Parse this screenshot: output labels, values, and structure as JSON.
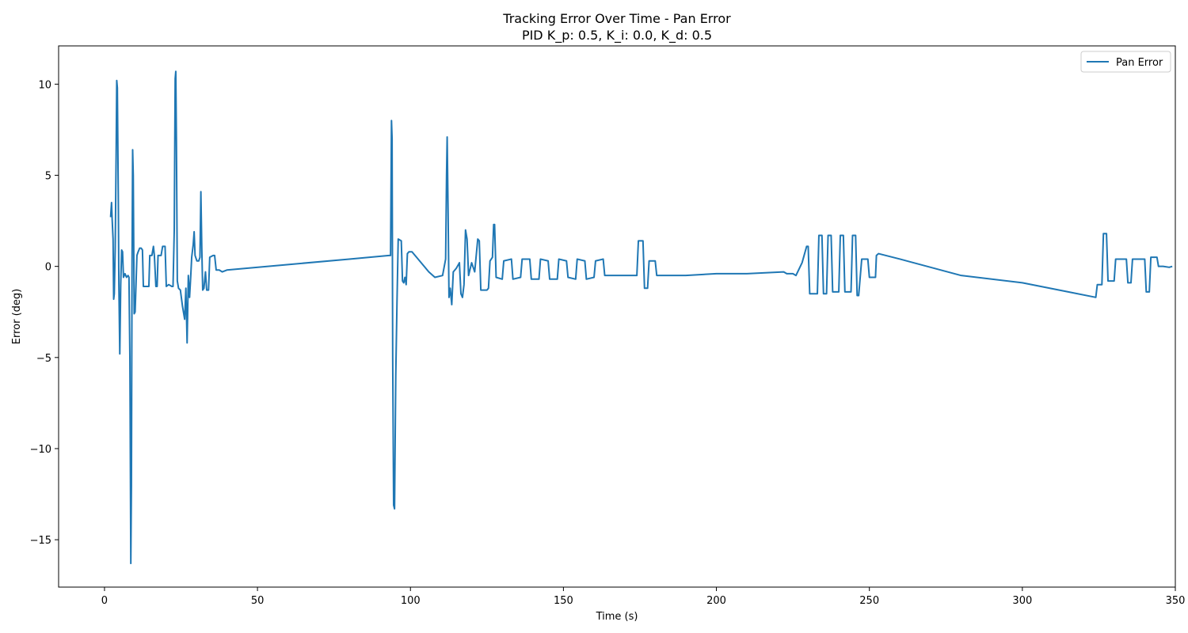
{
  "chart_data": {
    "type": "line",
    "title": "Tracking Error Over Time - Pan Error",
    "subtitle": "PID K_p: 0.5, K_i: 0.0, K_d: 0.5",
    "xlabel": "Time (s)",
    "ylabel": "Error (deg)",
    "xlim": [
      -15,
      350
    ],
    "ylim": [
      -17.6,
      12.1
    ],
    "x_ticks": [
      0,
      50,
      100,
      150,
      200,
      250,
      300,
      350
    ],
    "x_tick_labels": [
      "0",
      "50",
      "100",
      "150",
      "200",
      "250",
      "300",
      "350"
    ],
    "y_ticks": [
      -15,
      -10,
      -5,
      0,
      5,
      10
    ],
    "y_tick_labels": [
      "−15",
      "−10",
      "−5",
      "0",
      "5",
      "10"
    ],
    "grid": false,
    "legend": {
      "position": "top-right",
      "entries": [
        "Pan Error"
      ]
    },
    "colors": {
      "series": "#1f77b4",
      "axes": "#000000"
    },
    "series": [
      {
        "name": "Pan Error",
        "points": [
          [
            2.0,
            2.7
          ],
          [
            2.3,
            3.5
          ],
          [
            2.5,
            2.6
          ],
          [
            2.8,
            1.5
          ],
          [
            3.0,
            -1.8
          ],
          [
            3.2,
            -1.5
          ],
          [
            3.5,
            1.0
          ],
          [
            3.8,
            6.0
          ],
          [
            4.0,
            10.2
          ],
          [
            4.2,
            9.8
          ],
          [
            4.5,
            4.0
          ],
          [
            4.7,
            -1.0
          ],
          [
            5.0,
            -4.8
          ],
          [
            5.3,
            -1.0
          ],
          [
            5.6,
            0.9
          ],
          [
            5.9,
            0.8
          ],
          [
            6.2,
            -0.6
          ],
          [
            6.7,
            -0.4
          ],
          [
            7.2,
            -0.6
          ],
          [
            7.7,
            -0.5
          ],
          [
            8.0,
            -0.6
          ],
          [
            8.3,
            -5.0
          ],
          [
            8.6,
            -16.3
          ],
          [
            8.8,
            -12.0
          ],
          [
            9.0,
            0.0
          ],
          [
            9.2,
            6.4
          ],
          [
            9.4,
            5.0
          ],
          [
            9.7,
            -2.6
          ],
          [
            10.0,
            -2.5
          ],
          [
            10.3,
            -1.0
          ],
          [
            10.6,
            0.6
          ],
          [
            11.0,
            0.8
          ],
          [
            11.5,
            1.0
          ],
          [
            12.0,
            1.0
          ],
          [
            12.4,
            0.9
          ],
          [
            12.7,
            -1.1
          ],
          [
            13.5,
            -1.1
          ],
          [
            14.5,
            -1.1
          ],
          [
            14.8,
            0.6
          ],
          [
            15.5,
            0.6
          ],
          [
            16.0,
            1.1
          ],
          [
            16.3,
            0.6
          ],
          [
            16.8,
            -1.1
          ],
          [
            17.2,
            -1.1
          ],
          [
            17.5,
            0.6
          ],
          [
            18.5,
            0.6
          ],
          [
            19.0,
            1.1
          ],
          [
            19.8,
            1.1
          ],
          [
            20.2,
            -1.1
          ],
          [
            21.0,
            -1.0
          ],
          [
            22.0,
            -1.1
          ],
          [
            22.4,
            -1.1
          ],
          [
            22.8,
            2.0
          ],
          [
            23.1,
            10.3
          ],
          [
            23.3,
            10.7
          ],
          [
            23.5,
            7.0
          ],
          [
            23.8,
            -0.8
          ],
          [
            24.2,
            -1.2
          ],
          [
            24.8,
            -1.3
          ],
          [
            25.5,
            -2.2
          ],
          [
            26.2,
            -2.9
          ],
          [
            26.6,
            -1.2
          ],
          [
            27.0,
            -4.2
          ],
          [
            27.4,
            -0.5
          ],
          [
            27.8,
            -1.7
          ],
          [
            28.2,
            -0.5
          ],
          [
            28.5,
            0.5
          ],
          [
            29.0,
            1.2
          ],
          [
            29.3,
            1.9
          ],
          [
            29.6,
            0.6
          ],
          [
            30.2,
            0.3
          ],
          [
            30.8,
            0.3
          ],
          [
            31.2,
            0.5
          ],
          [
            31.5,
            4.1
          ],
          [
            31.8,
            1.0
          ],
          [
            32.1,
            -1.3
          ],
          [
            32.5,
            -1.2
          ],
          [
            33.0,
            -0.3
          ],
          [
            33.4,
            -1.3
          ],
          [
            34.0,
            -1.3
          ],
          [
            34.4,
            0.5
          ],
          [
            35.5,
            0.6
          ],
          [
            36.0,
            0.6
          ],
          [
            36.5,
            -0.2
          ],
          [
            37.5,
            -0.2
          ],
          [
            38.5,
            -0.3
          ],
          [
            40.0,
            -0.2
          ],
          [
            60.0,
            0.1
          ],
          [
            80.0,
            0.4
          ],
          [
            93.0,
            0.6
          ],
          [
            93.5,
            0.6
          ],
          [
            93.8,
            8.0
          ],
          [
            94.0,
            7.0
          ],
          [
            94.2,
            -5.0
          ],
          [
            94.5,
            -13.1
          ],
          [
            94.8,
            -13.3
          ],
          [
            95.2,
            -6.0
          ],
          [
            95.6,
            -2.0
          ],
          [
            96.0,
            1.5
          ],
          [
            97.0,
            1.4
          ],
          [
            97.4,
            -0.8
          ],
          [
            97.8,
            -0.9
          ],
          [
            98.2,
            -0.6
          ],
          [
            98.6,
            -1.0
          ],
          [
            99.0,
            0.7
          ],
          [
            99.5,
            0.8
          ],
          [
            100.5,
            0.8
          ],
          [
            102.0,
            0.5
          ],
          [
            104.0,
            0.1
          ],
          [
            106.0,
            -0.3
          ],
          [
            108.0,
            -0.6
          ],
          [
            110.5,
            -0.5
          ],
          [
            111.5,
            0.4
          ],
          [
            111.8,
            5.0
          ],
          [
            112.0,
            7.1
          ],
          [
            112.3,
            3.0
          ],
          [
            112.6,
            -1.7
          ],
          [
            113.0,
            -1.2
          ],
          [
            113.5,
            -2.1
          ],
          [
            114.0,
            -0.3
          ],
          [
            115.0,
            -0.1
          ],
          [
            116.0,
            0.2
          ],
          [
            116.5,
            -1.5
          ],
          [
            117.0,
            -1.7
          ],
          [
            117.5,
            -1.0
          ],
          [
            118.0,
            2.0
          ],
          [
            118.5,
            1.5
          ],
          [
            119.0,
            -0.5
          ],
          [
            120.0,
            0.2
          ],
          [
            121.0,
            -0.3
          ],
          [
            122.0,
            1.5
          ],
          [
            122.5,
            1.4
          ],
          [
            123.0,
            -1.3
          ],
          [
            125.0,
            -1.3
          ],
          [
            125.5,
            -1.2
          ],
          [
            126.0,
            0.3
          ],
          [
            126.8,
            0.5
          ],
          [
            127.2,
            2.3
          ],
          [
            127.5,
            2.3
          ],
          [
            128.0,
            -0.6
          ],
          [
            130.0,
            -0.7
          ],
          [
            130.5,
            0.3
          ],
          [
            133.0,
            0.4
          ],
          [
            133.5,
            -0.7
          ],
          [
            136.0,
            -0.6
          ],
          [
            136.5,
            0.4
          ],
          [
            139.0,
            0.4
          ],
          [
            139.5,
            -0.7
          ],
          [
            142.0,
            -0.7
          ],
          [
            142.5,
            0.4
          ],
          [
            145.0,
            0.3
          ],
          [
            145.5,
            -0.7
          ],
          [
            148.0,
            -0.7
          ],
          [
            148.5,
            0.4
          ],
          [
            151.0,
            0.3
          ],
          [
            151.5,
            -0.6
          ],
          [
            154.0,
            -0.7
          ],
          [
            154.5,
            0.4
          ],
          [
            157.0,
            0.3
          ],
          [
            157.5,
            -0.7
          ],
          [
            160.0,
            -0.6
          ],
          [
            160.5,
            0.3
          ],
          [
            163.0,
            0.4
          ],
          [
            163.5,
            -0.5
          ],
          [
            166.0,
            -0.5
          ],
          [
            170.0,
            -0.5
          ],
          [
            174.0,
            -0.5
          ],
          [
            174.5,
            1.4
          ],
          [
            176.0,
            1.4
          ],
          [
            176.5,
            -1.2
          ],
          [
            177.5,
            -1.2
          ],
          [
            178.0,
            0.3
          ],
          [
            180.0,
            0.3
          ],
          [
            180.5,
            -0.5
          ],
          [
            182.0,
            -0.5
          ],
          [
            190.0,
            -0.5
          ],
          [
            200.0,
            -0.4
          ],
          [
            210.0,
            -0.4
          ],
          [
            222.0,
            -0.3
          ],
          [
            223.0,
            -0.4
          ],
          [
            225.0,
            -0.4
          ],
          [
            226.0,
            -0.5
          ],
          [
            228.0,
            0.2
          ],
          [
            229.5,
            1.1
          ],
          [
            230.0,
            1.1
          ],
          [
            230.5,
            -1.5
          ],
          [
            233.0,
            -1.5
          ],
          [
            233.5,
            1.7
          ],
          [
            234.5,
            1.7
          ],
          [
            235.0,
            -1.5
          ],
          [
            236.0,
            -1.5
          ],
          [
            236.5,
            1.7
          ],
          [
            237.5,
            1.7
          ],
          [
            238.0,
            -1.4
          ],
          [
            240.0,
            -1.4
          ],
          [
            240.5,
            1.7
          ],
          [
            241.5,
            1.7
          ],
          [
            242.0,
            -1.4
          ],
          [
            244.0,
            -1.4
          ],
          [
            244.5,
            1.7
          ],
          [
            245.5,
            1.7
          ],
          [
            246.0,
            -1.6
          ],
          [
            246.5,
            -1.6
          ],
          [
            247.5,
            0.4
          ],
          [
            249.5,
            0.4
          ],
          [
            250.0,
            -0.6
          ],
          [
            252.0,
            -0.6
          ],
          [
            252.3,
            0.6
          ],
          [
            253.0,
            0.7
          ],
          [
            260.0,
            0.4
          ],
          [
            280.0,
            -0.5
          ],
          [
            300.0,
            -0.9
          ],
          [
            315.0,
            -1.4
          ],
          [
            324.0,
            -1.7
          ],
          [
            324.5,
            -1.0
          ],
          [
            326.0,
            -1.0
          ],
          [
            326.5,
            1.8
          ],
          [
            327.5,
            1.8
          ],
          [
            328.0,
            -0.8
          ],
          [
            330.0,
            -0.8
          ],
          [
            330.5,
            0.4
          ],
          [
            334.0,
            0.4
          ],
          [
            334.5,
            -0.9
          ],
          [
            335.5,
            -0.9
          ],
          [
            336.0,
            0.4
          ],
          [
            340.0,
            0.4
          ],
          [
            340.5,
            -1.4
          ],
          [
            341.5,
            -1.4
          ],
          [
            342.0,
            0.5
          ],
          [
            344.0,
            0.5
          ],
          [
            344.5,
            0.0
          ],
          [
            346.0,
            0.0
          ],
          [
            348.0,
            -0.05
          ],
          [
            349.0,
            0.0
          ]
        ]
      }
    ]
  }
}
